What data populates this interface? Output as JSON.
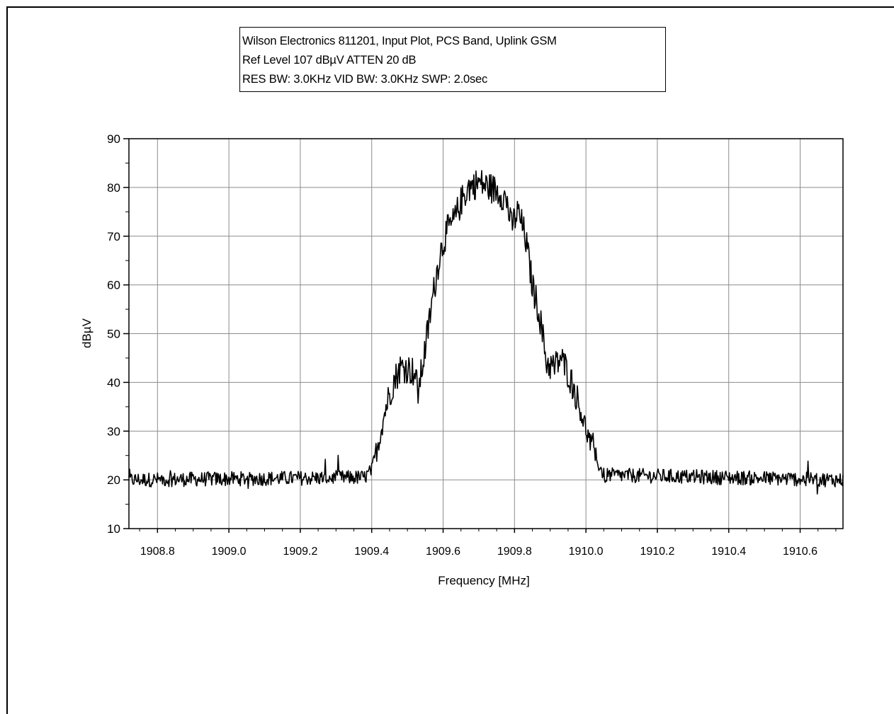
{
  "chart_data": {
    "type": "line",
    "title": [
      "Wilson Electronics 811201, Input Plot, PCS Band, Uplink GSM",
      "Ref Level 107 dBµV    ATTEN 20 dB",
      "RES BW: 3.0KHz  VID BW: 3.0KHz  SWP: 2.0sec"
    ],
    "xlabel": "Frequency [MHz]",
    "ylabel": "dBµV",
    "xlim": [
      1908.72,
      1910.72
    ],
    "ylim": [
      10,
      90
    ],
    "x_ticks": [
      1908.8,
      1909.0,
      1909.2,
      1909.4,
      1909.6,
      1909.8,
      1910.0,
      1910.2,
      1910.4,
      1910.6
    ],
    "x_tick_labels": [
      "1908.8",
      "1909.0",
      "1909.2",
      "1909.4",
      "1909.6",
      "1909.8",
      "1910.0",
      "1910.2",
      "1910.4",
      "1910.6"
    ],
    "y_ticks": [
      10,
      20,
      30,
      40,
      50,
      60,
      70,
      80,
      90
    ],
    "y_tick_labels": [
      "10",
      "20",
      "30",
      "40",
      "50",
      "60",
      "70",
      "80",
      "90"
    ],
    "grid": true,
    "series": [
      {
        "x": [
          1908.72,
          1909.38,
          1909.4,
          1909.42,
          1909.44,
          1909.46,
          1909.48,
          1909.5,
          1909.52,
          1909.53,
          1909.55,
          1909.57,
          1909.59,
          1909.61,
          1909.63,
          1909.65,
          1909.67,
          1909.7,
          1909.73,
          1909.76,
          1909.78,
          1909.79,
          1909.81,
          1909.83,
          1909.85,
          1909.87,
          1909.89,
          1909.91,
          1909.93,
          1909.95,
          1909.97,
          1909.99,
          1910.01,
          1910.03,
          1910.05,
          1910.72
        ],
        "y": [
          20,
          20.5,
          22,
          28,
          35,
          40,
          43,
          43,
          42,
          38,
          47,
          57,
          66,
          71,
          73,
          77,
          80,
          81,
          80,
          79,
          77,
          72,
          75,
          70,
          60,
          54,
          44,
          43,
          45,
          42,
          38,
          33,
          28,
          24,
          21,
          20
        ]
      }
    ],
    "line_color": "#000000",
    "grid_color": "#8c8c8c"
  }
}
